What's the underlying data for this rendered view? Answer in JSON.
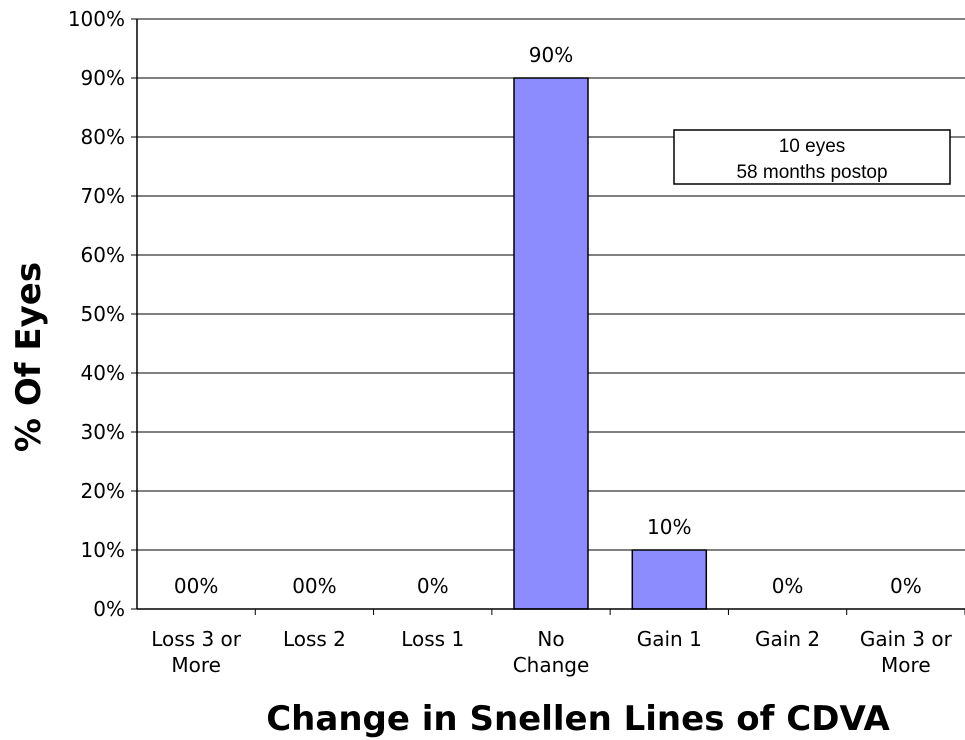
{
  "chart_data": {
    "type": "bar",
    "categories": [
      [
        "Loss 3 or",
        "More"
      ],
      [
        "Loss 2"
      ],
      [
        "Loss 1"
      ],
      [
        "No",
        "Change"
      ],
      [
        "Gain 1"
      ],
      [
        "Gain 2"
      ],
      [
        "Gain 3 or",
        "More"
      ]
    ],
    "values": [
      0,
      0,
      0,
      90,
      10,
      0,
      0
    ],
    "data_labels": [
      "00%",
      "00%",
      "0%",
      "90%",
      "10%",
      "0%",
      "0%"
    ],
    "ylabel": "% Of Eyes",
    "xlabel": "Change in Snellen Lines of CDVA",
    "ylim": [
      0,
      100
    ],
    "yticks": [
      "0%",
      "10%",
      "20%",
      "30%",
      "40%",
      "50%",
      "60%",
      "70%",
      "80%",
      "90%",
      "100%"
    ],
    "grid": true,
    "bar_color": "#8c8cff",
    "annotation": [
      "10 eyes",
      "58 months postop"
    ]
  }
}
